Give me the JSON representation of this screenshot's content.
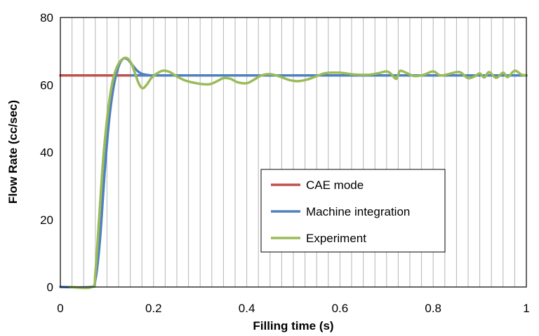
{
  "chart_data": {
    "type": "line",
    "xlabel": "Filling time (s)",
    "ylabel": "Flow Rate (cc/sec)",
    "xlim": [
      0,
      1
    ],
    "ylim": [
      0,
      80
    ],
    "x_ticks": [
      "0",
      "0.2",
      "0.4",
      "0.6",
      "0.8",
      "1"
    ],
    "y_ticks": [
      "0",
      "20",
      "40",
      "60",
      "80"
    ],
    "x_grid_step": 0.025,
    "grid": true,
    "legend_position": "center-right",
    "series": [
      {
        "name": "CAE mode",
        "color": "#c0504d",
        "points": [
          [
            0,
            62.8
          ],
          [
            1,
            62.8
          ]
        ]
      },
      {
        "name": "Machine integration",
        "color": "#4f81bd",
        "points": [
          [
            0,
            0
          ],
          [
            0.065,
            0
          ],
          [
            0.075,
            2
          ],
          [
            0.085,
            14
          ],
          [
            0.095,
            34
          ],
          [
            0.105,
            50
          ],
          [
            0.115,
            60
          ],
          [
            0.125,
            65.5
          ],
          [
            0.135,
            67.8
          ],
          [
            0.145,
            67.5
          ],
          [
            0.155,
            65.8
          ],
          [
            0.165,
            64.2
          ],
          [
            0.175,
            63.3
          ],
          [
            0.19,
            62.9
          ],
          [
            0.22,
            62.8
          ],
          [
            1,
            62.8
          ]
        ]
      },
      {
        "name": "Experiment",
        "color": "#9bbb59",
        "points": [
          [
            0.02,
            0
          ],
          [
            0.068,
            0
          ],
          [
            0.075,
            4
          ],
          [
            0.083,
            20
          ],
          [
            0.092,
            38
          ],
          [
            0.102,
            52
          ],
          [
            0.112,
            61
          ],
          [
            0.122,
            65.5
          ],
          [
            0.132,
            67.5
          ],
          [
            0.142,
            68
          ],
          [
            0.152,
            66.5
          ],
          [
            0.16,
            63.5
          ],
          [
            0.168,
            60.5
          ],
          [
            0.176,
            59
          ],
          [
            0.185,
            60
          ],
          [
            0.195,
            62
          ],
          [
            0.205,
            63.2
          ],
          [
            0.22,
            64.2
          ],
          [
            0.235,
            63.8
          ],
          [
            0.25,
            62.5
          ],
          [
            0.27,
            61.2
          ],
          [
            0.3,
            60.3
          ],
          [
            0.32,
            60.2
          ],
          [
            0.335,
            61
          ],
          [
            0.35,
            62
          ],
          [
            0.365,
            61.8
          ],
          [
            0.38,
            60.8
          ],
          [
            0.4,
            60.5
          ],
          [
            0.415,
            61.5
          ],
          [
            0.43,
            62.7
          ],
          [
            0.45,
            63.2
          ],
          [
            0.47,
            62.5
          ],
          [
            0.49,
            61.5
          ],
          [
            0.51,
            61.1
          ],
          [
            0.53,
            61.6
          ],
          [
            0.55,
            62.6
          ],
          [
            0.57,
            63.5
          ],
          [
            0.6,
            63.6
          ],
          [
            0.63,
            63.1
          ],
          [
            0.66,
            63
          ],
          [
            0.68,
            63.4
          ],
          [
            0.7,
            64
          ],
          [
            0.71,
            63.2
          ],
          [
            0.72,
            61.8
          ],
          [
            0.725,
            63
          ],
          [
            0.73,
            64.2
          ],
          [
            0.745,
            63.4
          ],
          [
            0.76,
            62.6
          ],
          [
            0.78,
            63
          ],
          [
            0.8,
            64
          ],
          [
            0.815,
            62.8
          ],
          [
            0.83,
            63.1
          ],
          [
            0.85,
            63.8
          ],
          [
            0.86,
            63.6
          ],
          [
            0.875,
            62
          ],
          [
            0.89,
            62.6
          ],
          [
            0.9,
            63.4
          ],
          [
            0.91,
            62.2
          ],
          [
            0.92,
            63.8
          ],
          [
            0.935,
            62.1
          ],
          [
            0.95,
            63.6
          ],
          [
            0.96,
            62.3
          ],
          [
            0.975,
            64.2
          ],
          [
            0.99,
            63
          ],
          [
            1,
            62.9
          ]
        ]
      }
    ]
  }
}
